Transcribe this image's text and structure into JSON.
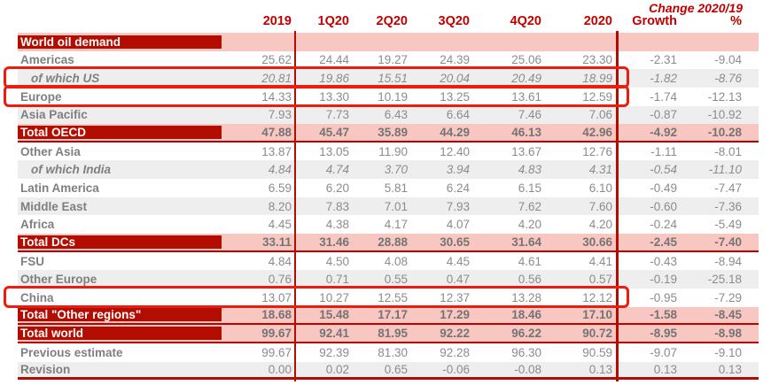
{
  "header": {
    "change_label": "Change 2020/19",
    "columns": [
      "2019",
      "1Q20",
      "2Q20",
      "3Q20",
      "4Q20",
      "2020",
      "Growth",
      "%"
    ]
  },
  "table": {
    "section_row": {
      "label": "World oil demand"
    },
    "rows": [
      {
        "label": "Americas",
        "type": "plain",
        "stripe": false,
        "box": false,
        "values": [
          "25.62",
          "24.44",
          "19.27",
          "24.39",
          "25.06",
          "23.30",
          "-2.31",
          "-9.04"
        ]
      },
      {
        "label": "of which US",
        "type": "sub",
        "stripe": true,
        "box": true,
        "values": [
          "20.81",
          "19.86",
          "15.51",
          "20.04",
          "20.49",
          "18.99",
          "-1.82",
          "-8.76"
        ]
      },
      {
        "label": "Europe",
        "type": "plain",
        "stripe": false,
        "box": true,
        "values": [
          "14.33",
          "13.30",
          "10.19",
          "13.25",
          "13.61",
          "12.59",
          "-1.74",
          "-12.13"
        ]
      },
      {
        "label": "Asia Pacific",
        "type": "plain",
        "stripe": true,
        "box": false,
        "values": [
          "7.93",
          "7.73",
          "6.43",
          "6.64",
          "7.46",
          "7.06",
          "-0.87",
          "-10.92"
        ]
      },
      {
        "label": "Total OECD",
        "type": "total",
        "underline": true,
        "values": [
          "47.88",
          "45.47",
          "35.89",
          "44.29",
          "46.13",
          "42.96",
          "-4.92",
          "-10.28"
        ]
      },
      {
        "label": "Other Asia",
        "type": "plain",
        "stripe": false,
        "box": false,
        "values": [
          "13.87",
          "13.05",
          "11.90",
          "12.40",
          "13.67",
          "12.76",
          "-1.11",
          "-8.01"
        ]
      },
      {
        "label": "of which India",
        "type": "sub",
        "stripe": true,
        "box": false,
        "values": [
          "4.84",
          "4.74",
          "3.70",
          "3.94",
          "4.83",
          "4.31",
          "-0.54",
          "-11.10"
        ]
      },
      {
        "label": "Latin America",
        "type": "plain",
        "stripe": false,
        "box": false,
        "values": [
          "6.59",
          "6.20",
          "5.81",
          "6.24",
          "6.15",
          "6.10",
          "-0.49",
          "-7.47"
        ]
      },
      {
        "label": "Middle East",
        "type": "plain",
        "stripe": true,
        "box": false,
        "values": [
          "8.20",
          "7.83",
          "7.01",
          "7.93",
          "7.62",
          "7.60",
          "-0.60",
          "-7.36"
        ]
      },
      {
        "label": "Africa",
        "type": "plain",
        "stripe": false,
        "box": false,
        "values": [
          "4.45",
          "4.38",
          "4.17",
          "4.07",
          "4.20",
          "4.20",
          "-0.24",
          "-5.49"
        ]
      },
      {
        "label": "Total DCs",
        "type": "total",
        "underline": true,
        "values": [
          "33.11",
          "31.46",
          "28.88",
          "30.65",
          "31.64",
          "30.66",
          "-2.45",
          "-7.40"
        ]
      },
      {
        "label": "FSU",
        "type": "plain",
        "stripe": false,
        "box": false,
        "values": [
          "4.84",
          "4.50",
          "4.08",
          "4.45",
          "4.61",
          "4.41",
          "-0.43",
          "-8.94"
        ]
      },
      {
        "label": "Other Europe",
        "type": "plain",
        "stripe": true,
        "box": false,
        "values": [
          "0.76",
          "0.71",
          "0.55",
          "0.47",
          "0.56",
          "0.57",
          "-0.19",
          "-25.18"
        ]
      },
      {
        "label": "China",
        "type": "plain",
        "stripe": false,
        "box": true,
        "values": [
          "13.07",
          "10.27",
          "12.55",
          "12.37",
          "13.28",
          "12.12",
          "-0.95",
          "-7.29"
        ]
      },
      {
        "label": "Total \"Other regions\"",
        "type": "total",
        "underline": true,
        "values": [
          "18.68",
          "15.48",
          "17.17",
          "17.29",
          "18.46",
          "17.10",
          "-1.58",
          "-8.45"
        ]
      },
      {
        "label": "Total world",
        "type": "total",
        "underline": true,
        "values": [
          "99.67",
          "92.41",
          "81.95",
          "92.22",
          "96.22",
          "90.72",
          "-8.95",
          "-8.98"
        ]
      },
      {
        "label": "Previous estimate",
        "type": "plain",
        "stripe": false,
        "box": false,
        "values": [
          "99.67",
          "92.39",
          "81.30",
          "92.28",
          "96.30",
          "90.59",
          "-9.07",
          "-9.10"
        ]
      },
      {
        "label": "Revision",
        "type": "plain",
        "stripe": true,
        "bottomline": true,
        "values": [
          "0.00",
          "0.02",
          "0.65",
          "-0.06",
          "-0.08",
          "0.13",
          "0.13",
          "0.13"
        ]
      }
    ]
  },
  "colors": {
    "band_dark_red": "#b30d02",
    "header_text_red": "#c00000",
    "band_pink": "#f9c7c2",
    "stripe_gray": "#eeeeee",
    "text_gray": "#8c8c8c",
    "highlight_box_red": "#ee1c0c"
  }
}
